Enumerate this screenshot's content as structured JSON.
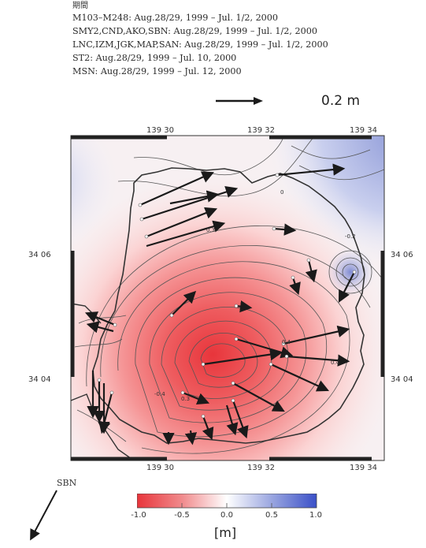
{
  "period": {
    "title": "期間",
    "lines": [
      "M103–M248: Aug.28/29, 1999 – Jul. 1/2, 2000",
      "SMY2,CND,AKO,SBN: Aug.28/29, 1999 – Jul. 1/2, 2000",
      "LNC,IZM,JGK,MAP,SAN: Aug.28/29, 1999 – Jul. 1/2, 2000",
      "ST2: Aug.28/29, 1999 – Jul. 10, 2000",
      "MSN: Aug.28/29, 1999 – Jul. 12, 2000"
    ]
  },
  "scale_bar": {
    "label": "0.2 m"
  },
  "axes": {
    "top_ticks": [
      "139 30",
      "139 32",
      "139 34"
    ],
    "bottom_ticks": [
      "139 30",
      "139 32",
      "139 34"
    ],
    "left_ticks": [
      "34 06",
      "34 04"
    ],
    "right_ticks": [
      "34 06",
      "34 04"
    ]
  },
  "station_outside": {
    "label": "SBN"
  },
  "colorbar": {
    "ticks": [
      "-1.0",
      "-0.5",
      "0.0",
      "0.5",
      "1.0"
    ],
    "unit": "[m]",
    "colors": [
      "#e8353b",
      "#f08a8c",
      "#ffffff",
      "#9aa6e0",
      "#3a50c8"
    ]
  },
  "contour_labels": [
    "0",
    "0.3",
    "0.3",
    "-0.4",
    "0.4",
    "0.4",
    "-0.2"
  ],
  "colors": {
    "land_outline": "#333333",
    "arrow": "#1a1a1a"
  }
}
